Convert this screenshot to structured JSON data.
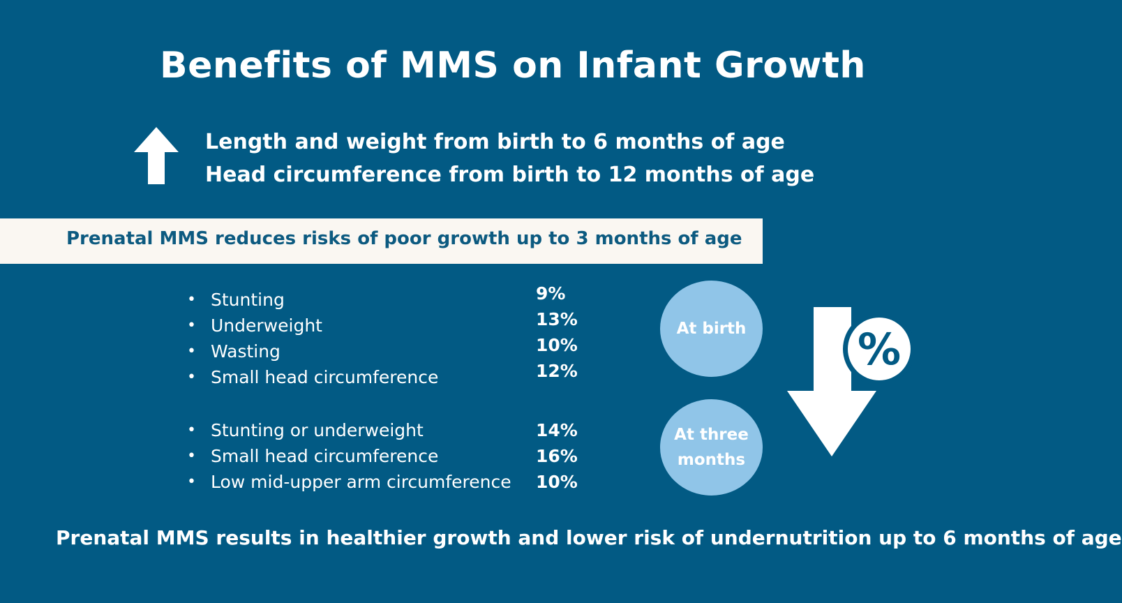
{
  "title": "Benefits of MMS on Infant Growth",
  "intro": {
    "icon": "arrow-up-icon",
    "line1": "Length and weight from birth to 6 months of age",
    "line2": "Head circumference from birth to 12 months of age"
  },
  "banner": {
    "text": "Prenatal MMS reduces risks of poor growth up to 3 months of age"
  },
  "groups": [
    {
      "label": "At birth",
      "items": [
        {
          "name": "Stunting",
          "value": "9%"
        },
        {
          "name": "Underweight",
          "value": "13%"
        },
        {
          "name": "Wasting",
          "value": "10%"
        },
        {
          "name": "Small head circumference",
          "value": "12%"
        }
      ]
    },
    {
      "label": "At three months",
      "items": [
        {
          "name": "Stunting or underweight",
          "value": "14%"
        },
        {
          "name": "Small head circumference",
          "value": "16%"
        },
        {
          "name": "Low mid-upper arm circumference",
          "value": "10%"
        }
      ]
    }
  ],
  "decrease_graphic": {
    "icon": "arrow-down-percent-icon",
    "symbol": "%"
  },
  "footer": "Prenatal MMS results in healthier growth and lower risk of undernutrition up to 6 months of age",
  "colors": {
    "background": "#025a84",
    "banner": "#faf7f2",
    "banner_text": "#0c5a80",
    "circle": "#90c5e8",
    "text": "#ffffff"
  }
}
